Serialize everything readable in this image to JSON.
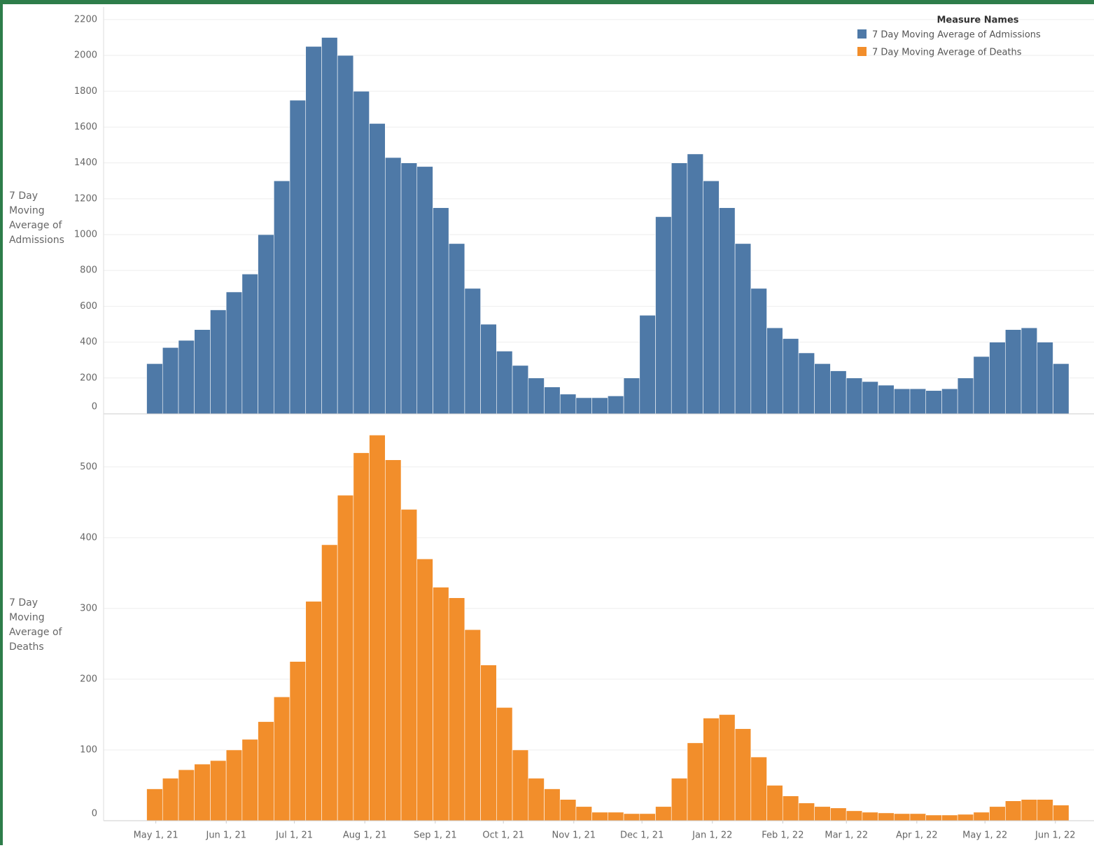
{
  "chart_data": [
    {
      "type": "bar",
      "y_label": "7 Day Moving Average of Admissions",
      "legend_title": "Measure Names",
      "legend": "top-right",
      "grid": true,
      "ylim": [
        0,
        2270
      ],
      "yticks": [
        0,
        200,
        400,
        600,
        800,
        1000,
        1200,
        1400,
        1600,
        1800,
        2000,
        2200
      ],
      "xlim": [
        "2021-04-08",
        "2022-06-18"
      ],
      "x": [
        "2021-04-28",
        "2021-05-05",
        "2021-05-12",
        "2021-05-19",
        "2021-05-26",
        "2021-06-02",
        "2021-06-09",
        "2021-06-16",
        "2021-06-23",
        "2021-06-30",
        "2021-07-07",
        "2021-07-14",
        "2021-07-21",
        "2021-07-28",
        "2021-08-04",
        "2021-08-11",
        "2021-08-18",
        "2021-08-25",
        "2021-09-01",
        "2021-09-08",
        "2021-09-15",
        "2021-09-22",
        "2021-09-29",
        "2021-10-06",
        "2021-10-13",
        "2021-10-20",
        "2021-10-27",
        "2021-11-03",
        "2021-11-10",
        "2021-11-17",
        "2021-11-24",
        "2021-12-01",
        "2021-12-08",
        "2021-12-15",
        "2021-12-22",
        "2021-12-29",
        "2022-01-05",
        "2022-01-12",
        "2022-01-19",
        "2022-01-26",
        "2022-02-02",
        "2022-02-09",
        "2022-02-16",
        "2022-02-23",
        "2022-03-02",
        "2022-03-09",
        "2022-03-16",
        "2022-03-23",
        "2022-03-30",
        "2022-04-06",
        "2022-04-13",
        "2022-04-20",
        "2022-04-27",
        "2022-05-04",
        "2022-05-11",
        "2022-05-18",
        "2022-05-25",
        "2022-06-01"
      ],
      "series": [
        {
          "name": "7 Day Moving Average of Admissions",
          "color": "#4e79a7",
          "values": [
            280,
            370,
            410,
            470,
            580,
            680,
            780,
            1000,
            1300,
            1750,
            2050,
            2100,
            2000,
            1800,
            1620,
            1430,
            1400,
            1380,
            1150,
            950,
            700,
            500,
            350,
            270,
            200,
            150,
            110,
            90,
            90,
            100,
            200,
            550,
            1100,
            1400,
            1450,
            1300,
            1150,
            950,
            700,
            480,
            420,
            340,
            280,
            240,
            200,
            180,
            160,
            140,
            140,
            130,
            140,
            200,
            320,
            400,
            470,
            480,
            400,
            280
          ]
        }
      ]
    },
    {
      "type": "bar",
      "y_label": "7 Day Moving Average of Deaths",
      "grid": true,
      "ylim": [
        0,
        575
      ],
      "yticks": [
        0,
        100,
        200,
        300,
        400,
        500
      ],
      "xlim": [
        "2021-04-08",
        "2022-06-18"
      ],
      "x": [
        "2021-04-28",
        "2021-05-05",
        "2021-05-12",
        "2021-05-19",
        "2021-05-26",
        "2021-06-02",
        "2021-06-09",
        "2021-06-16",
        "2021-06-23",
        "2021-06-30",
        "2021-07-07",
        "2021-07-14",
        "2021-07-21",
        "2021-07-28",
        "2021-08-04",
        "2021-08-11",
        "2021-08-18",
        "2021-08-25",
        "2021-09-01",
        "2021-09-08",
        "2021-09-15",
        "2021-09-22",
        "2021-09-29",
        "2021-10-06",
        "2021-10-13",
        "2021-10-20",
        "2021-10-27",
        "2021-11-03",
        "2021-11-10",
        "2021-11-17",
        "2021-11-24",
        "2021-12-01",
        "2021-12-08",
        "2021-12-15",
        "2021-12-22",
        "2021-12-29",
        "2022-01-05",
        "2022-01-12",
        "2022-01-19",
        "2022-01-26",
        "2022-02-02",
        "2022-02-09",
        "2022-02-16",
        "2022-02-23",
        "2022-03-02",
        "2022-03-09",
        "2022-03-16",
        "2022-03-23",
        "2022-03-30",
        "2022-04-06",
        "2022-04-13",
        "2022-04-20",
        "2022-04-27",
        "2022-05-04",
        "2022-05-11",
        "2022-05-18",
        "2022-05-25",
        "2022-06-01"
      ],
      "series": [
        {
          "name": "7 Day Moving Average of Deaths",
          "color": "#f28e2b",
          "values": [
            45,
            60,
            72,
            80,
            85,
            100,
            115,
            140,
            175,
            225,
            310,
            390,
            460,
            520,
            545,
            510,
            440,
            370,
            330,
            315,
            270,
            220,
            160,
            100,
            60,
            45,
            30,
            20,
            12,
            12,
            10,
            10,
            20,
            60,
            110,
            145,
            150,
            130,
            90,
            50,
            35,
            25,
            20,
            18,
            14,
            12,
            11,
            10,
            10,
            8,
            8,
            9,
            12,
            20,
            28,
            30,
            30,
            22
          ]
        }
      ],
      "xticks": [
        {
          "value": "2021-05-01",
          "label": "May 1, 21"
        },
        {
          "value": "2021-06-01",
          "label": "Jun 1, 21"
        },
        {
          "value": "2021-07-01",
          "label": "Jul 1, 21"
        },
        {
          "value": "2021-08-01",
          "label": "Aug 1, 21"
        },
        {
          "value": "2021-09-01",
          "label": "Sep 1, 21"
        },
        {
          "value": "2021-10-01",
          "label": "Oct 1, 21"
        },
        {
          "value": "2021-11-01",
          "label": "Nov 1, 21"
        },
        {
          "value": "2021-12-01",
          "label": "Dec 1, 21"
        },
        {
          "value": "2022-01-01",
          "label": "Jan 1, 22"
        },
        {
          "value": "2022-02-01",
          "label": "Feb 1, 22"
        },
        {
          "value": "2022-03-01",
          "label": "Mar 1, 22"
        },
        {
          "value": "2022-04-01",
          "label": "Apr 1, 22"
        },
        {
          "value": "2022-05-01",
          "label": "May 1, 22"
        },
        {
          "value": "2022-06-01",
          "label": "Jun 1, 22"
        }
      ]
    }
  ]
}
